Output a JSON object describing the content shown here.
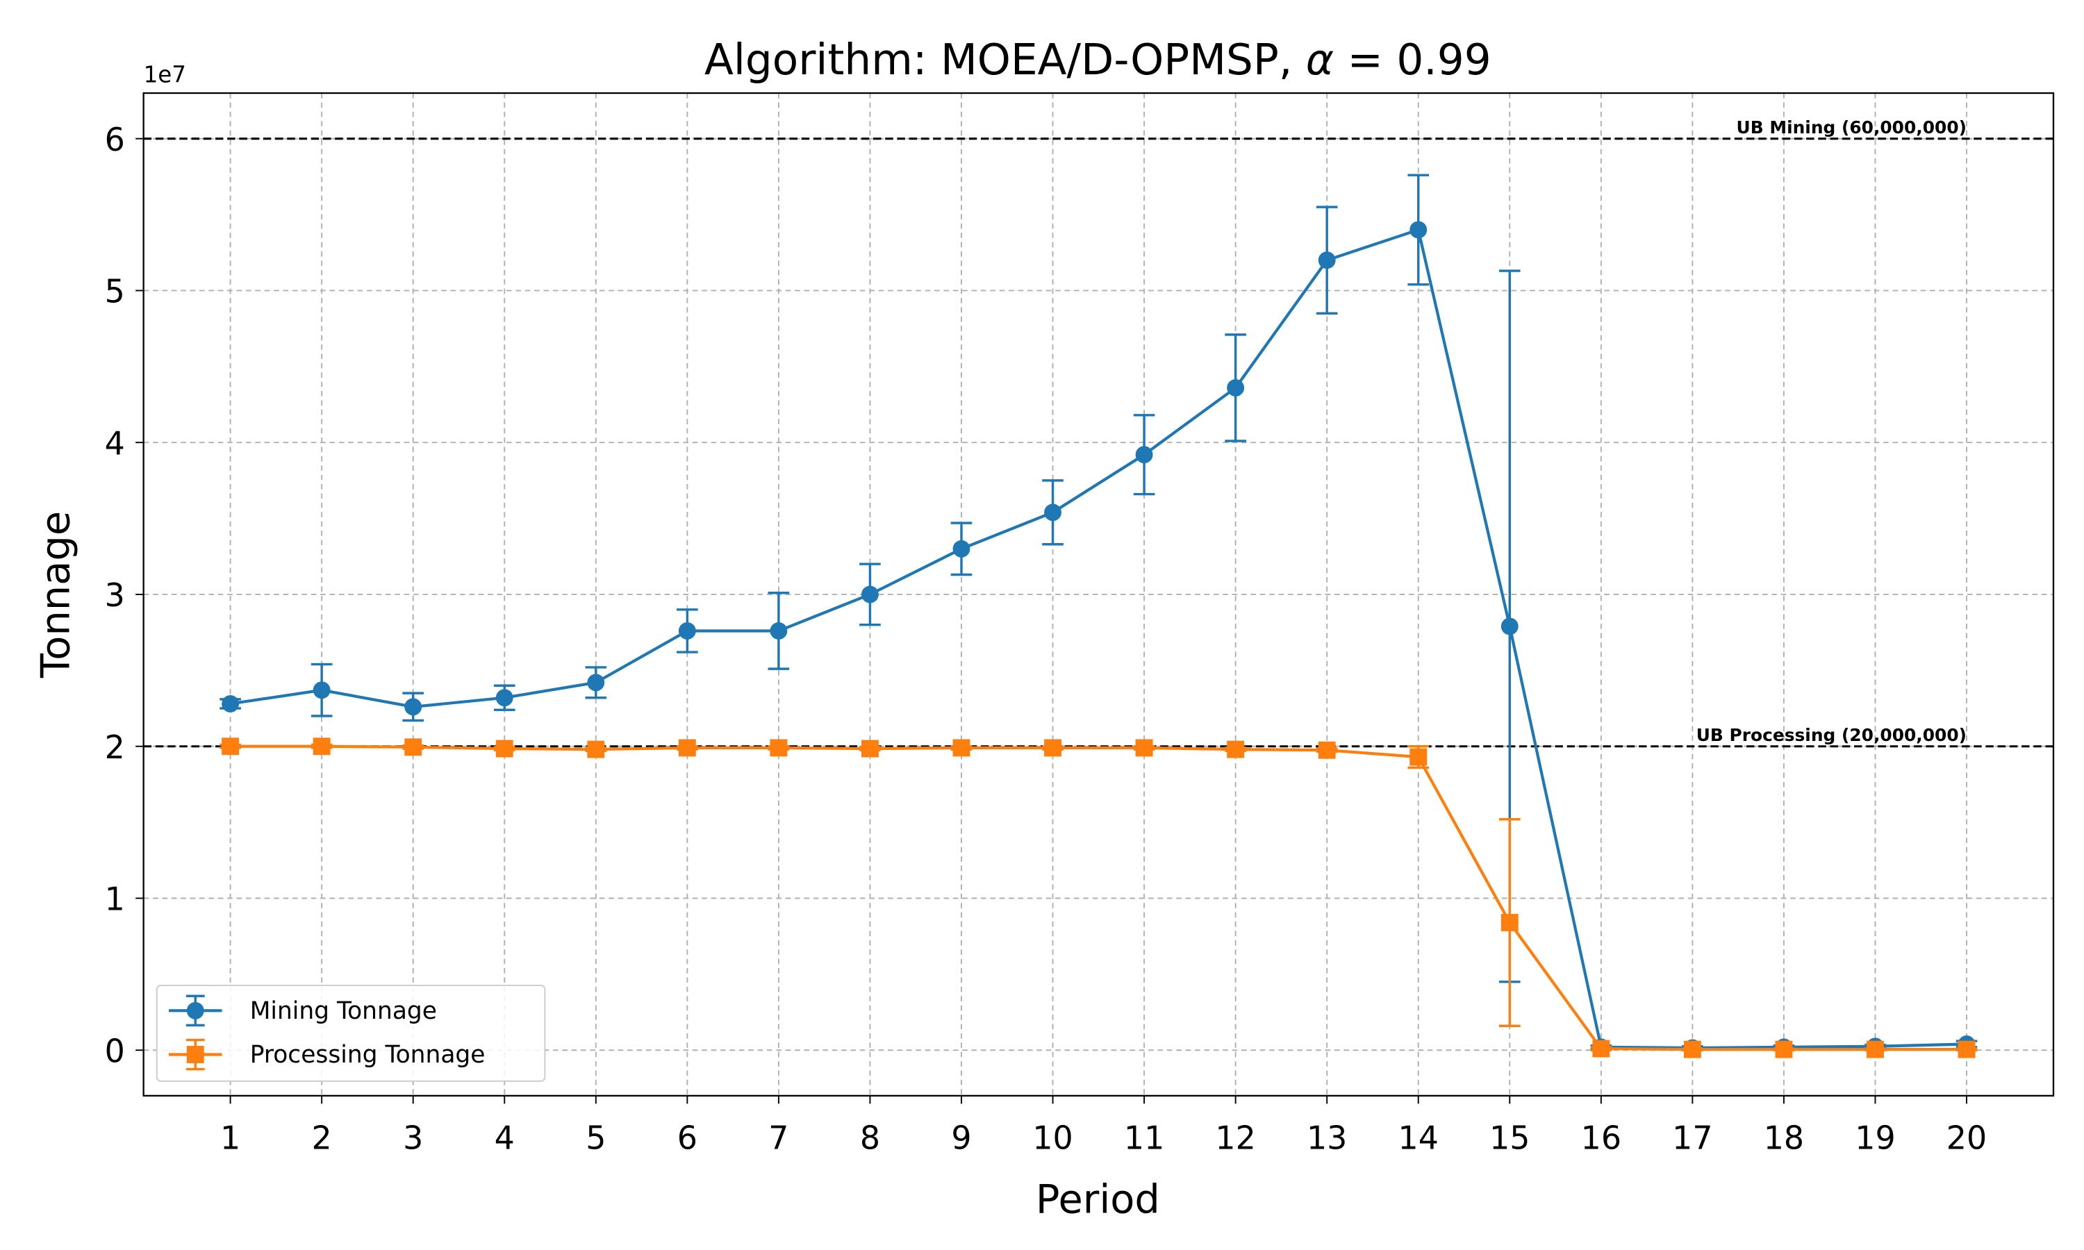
{
  "chart_data": {
    "type": "line",
    "title": "Algorithm: MOEA/D-OPMSP, α = 0.99",
    "title_prefix": "Algorithm: MOEA/D-OPMSP, ",
    "title_symbol": "α",
    "title_suffix": " = 0.99",
    "xlabel": "Period",
    "ylabel": "Tonnage",
    "y_offset_label": "1e7",
    "x": [
      1,
      2,
      3,
      4,
      5,
      6,
      7,
      8,
      9,
      10,
      11,
      12,
      13,
      14,
      15,
      16,
      17,
      18,
      19,
      20
    ],
    "xlim": [
      0.05,
      20.95
    ],
    "ylim": [
      -3000000.0,
      63000000.0
    ],
    "y_ticks": [
      0,
      10000000,
      20000000,
      30000000,
      40000000,
      50000000,
      60000000
    ],
    "y_tick_labels": [
      "0",
      "1",
      "2",
      "3",
      "4",
      "5",
      "6"
    ],
    "grid": true,
    "legend_position": "lower-left",
    "series": [
      {
        "name": "Mining Tonnage",
        "color": "#1f77b4",
        "marker": "circle",
        "values": [
          22800000,
          23700000,
          22600000,
          23200000,
          24200000,
          27600000,
          27600000,
          30000000,
          33000000,
          35400000,
          39200000,
          43600000,
          52000000,
          54000000,
          27900000,
          200000,
          150000,
          200000,
          250000,
          400000
        ],
        "errors": [
          300000,
          1700000,
          900000,
          800000,
          1000000,
          1400000,
          2500000,
          2000000,
          1700000,
          2100000,
          2600000,
          3500000,
          3500000,
          3600000,
          23400000,
          100000,
          100000,
          100000,
          100000,
          200000
        ]
      },
      {
        "name": "Processing Tonnage",
        "color": "#ff7f0e",
        "marker": "square",
        "values": [
          20000000,
          20000000,
          19950000,
          19850000,
          19800000,
          19900000,
          19900000,
          19850000,
          19900000,
          19900000,
          19900000,
          19800000,
          19750000,
          19300000,
          8400000,
          100000,
          50000,
          50000,
          50000,
          50000
        ],
        "errors": [
          100000,
          100000,
          100000,
          100000,
          100000,
          100000,
          100000,
          100000,
          100000,
          100000,
          100000,
          100000,
          100000,
          700000,
          6800000,
          100000,
          50000,
          50000,
          50000,
          50000
        ]
      }
    ],
    "reference_lines": [
      {
        "label": "UB Mining (60,000,000)",
        "value": 60000000,
        "color": "#000000"
      },
      {
        "label": "UB Processing (20,000,000)",
        "value": 20000000,
        "color": "#000000"
      }
    ]
  }
}
